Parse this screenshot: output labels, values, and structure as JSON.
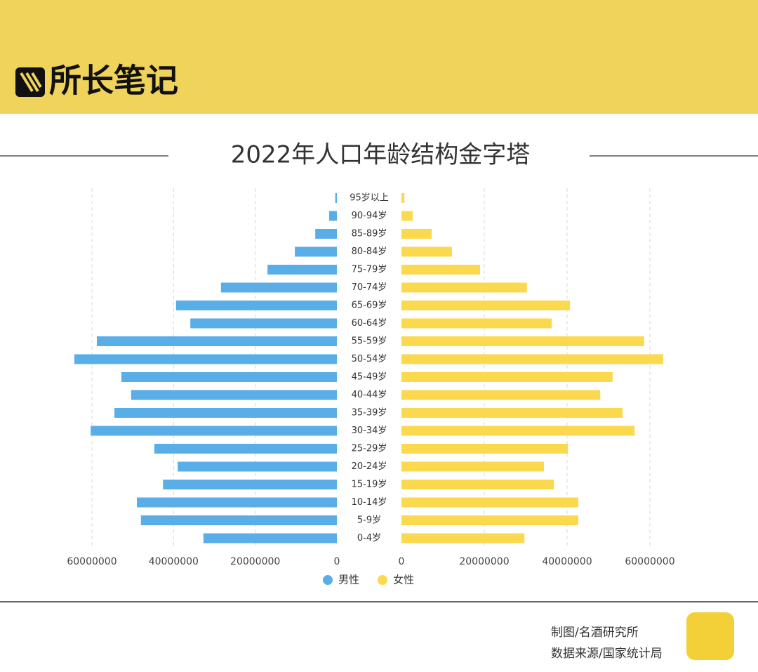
{
  "header": {
    "logo": "所长笔记"
  },
  "chart_data": {
    "type": "pyramid",
    "title": "2022年人口年龄结构金字塔",
    "categories": [
      "95岁以上",
      "90-94岁",
      "85-89岁",
      "80-84岁",
      "75-79岁",
      "70-74岁",
      "65-69岁",
      "60-64岁",
      "55-59岁",
      "50-54岁",
      "45-49岁",
      "40-44岁",
      "35-39岁",
      "30-34岁",
      "25-29岁",
      "20-24岁",
      "15-19岁",
      "10-14岁",
      "5-9岁",
      "0-4岁"
    ],
    "series": [
      {
        "name": "男性",
        "color": "#5aaee8",
        "side": "left",
        "values": [
          400000,
          1900000,
          5300000,
          10300000,
          17000000,
          28400000,
          39400000,
          35900000,
          58800000,
          64300000,
          52800000,
          50400000,
          54500000,
          60300000,
          44700000,
          39000000,
          42600000,
          49000000,
          48000000,
          32700000
        ]
      },
      {
        "name": "女性",
        "color": "#fbd94e",
        "side": "right",
        "values": [
          700000,
          2700000,
          7300000,
          12200000,
          19000000,
          30300000,
          40700000,
          36300000,
          58600000,
          63200000,
          51000000,
          48000000,
          53400000,
          56300000,
          40200000,
          34400000,
          36800000,
          42700000,
          42700000,
          29700000
        ]
      }
    ],
    "xlim": [
      0,
      60000000
    ],
    "xticks": [
      0,
      20000000,
      40000000,
      60000000
    ],
    "grid": true
  },
  "footer": {
    "credit": "制图/名酒研究所",
    "source": "数据来源/国家统计局"
  }
}
